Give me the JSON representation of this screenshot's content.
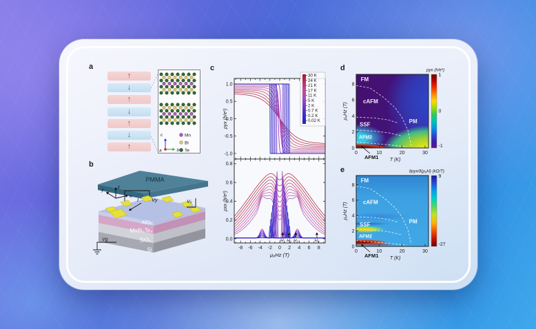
{
  "colors": {
    "background_top_left": "#837be6",
    "background_bottom_right": "#3fa8ec",
    "card_fill": "#eef1f9",
    "card_ring": "#ffffff",
    "temp_scale": [
      "#a81428",
      "#b93364",
      "#c14b9b",
      "#a648c0",
      "#7038cc",
      "#3a2cc8",
      "#2422c0"
    ],
    "colorbar_d": [
      "#6b0000",
      "#c00000",
      "#f03000",
      "#ff8a00",
      "#ffd800",
      "#a0dc00",
      "#30c860",
      "#00c4b0",
      "#0098e8",
      "#2a50d4",
      "#3a20a8",
      "#5c1292"
    ],
    "colorbar_e": [
      "#181a96",
      "#2b4ad8",
      "#00a2ec",
      "#00d2c2",
      "#58d858",
      "#c8e020",
      "#ffb400",
      "#f05800",
      "#c41400",
      "#6e0000"
    ]
  },
  "figure": {
    "panel_labels": {
      "a": "a",
      "b": "b",
      "c": "c",
      "d": "d",
      "e": "e"
    },
    "panel_a": {
      "layers": [
        "up",
        "down",
        "up",
        "down",
        "up",
        "down",
        "up"
      ],
      "layer_colors": {
        "up_bg": "#f0c9c9",
        "down_bg": "#c3ddf0",
        "up_arrow": "#c03a4e",
        "down_arrow": "#2f6fb0"
      },
      "crystal_axes": {
        "a": "a",
        "b": "b",
        "c": "c"
      },
      "atom_legend": [
        {
          "label": "Mn",
          "color": "#b35cb3",
          "stroke": "#7a3a80"
        },
        {
          "label": "Bi",
          "color": "#d9c87a",
          "stroke": "#a89440"
        },
        {
          "label": "Te",
          "color": "#2f6b36",
          "stroke": "#1c4520"
        }
      ]
    },
    "panel_b": {
      "labels": {
        "pmma": "PMMA",
        "alox": "AlOₓ",
        "mbt": "MnBi₂Te₄",
        "sio2": "SiO₂",
        "si": "Si",
        "vy": "Vy",
        "vx": "Vₓ",
        "vg": "Vg",
        "current": "I",
        "axis_x": "x",
        "axis_y": "y",
        "axis_z": "z"
      }
    },
    "panel_c": {
      "top": {
        "ylabel": "ρyx (h/e²)",
        "yticks": [
          "1.0",
          "0.5",
          "0.0",
          "-0.5",
          "-1.0"
        ]
      },
      "bottom": {
        "ylabel": "ρxx (h/e²)",
        "yticks": [
          "0.8",
          "0.6",
          "0.4",
          "0.2",
          "0.0"
        ],
        "xticks": [
          "-8",
          "-6",
          "-4",
          "-2",
          "0",
          "2",
          "4",
          "6",
          "8"
        ],
        "xlabel": "μ₀Hz (T)"
      },
      "legend_temps": [
        "30 K",
        "24 K",
        "21 K",
        "17 K",
        "11 K",
        "5 K",
        "2 K",
        "0.7 K",
        "0.2 K",
        "0.02 K"
      ]
    },
    "panel_d": {
      "title": "ρyx (h/e²)",
      "xlabel": "T (K)",
      "ylabel": "μ₀Hz (T)",
      "xticks": [
        "0",
        "10",
        "20",
        "30"
      ],
      "yticks": [
        "0",
        "2",
        "4",
        "6",
        "8"
      ],
      "colorbar_ticks": [
        "1",
        "0",
        "-1"
      ],
      "outside_label": "AFM1"
    },
    "panel_e": {
      "title": "∂ρyx/∂(μ₀H) (kΩ/T)",
      "xlabel": "T (K)",
      "ylabel": "μ₀Hz (T)",
      "xticks": [
        "0",
        "10",
        "20",
        "30"
      ],
      "yticks": [
        "0",
        "2",
        "4",
        "6",
        "8"
      ],
      "colorbar_ticks": [
        "9",
        "-27"
      ],
      "outside_label": "AFM1"
    }
  },
  "chart_data": [
    {
      "id": "panel-c-top",
      "type": "line",
      "xlabel": "μ₀Hz (T)",
      "ylabel": "ρyx (h/e²)",
      "xlim": [
        -9,
        9
      ],
      "ylim": [
        -1,
        1
      ],
      "legend_position": "top-right",
      "description": "Hall resistivity vs out-of-plane magnetic field. Smooth antisymmetric sigmoids at high temperature evolve into square hysteresis loops saturating at ±1 h/e² at millikelvin temperatures.",
      "series": [
        {
          "name": "30 K",
          "shape": "smooth",
          "saturation": 0.72
        },
        {
          "name": "24 K",
          "shape": "smooth",
          "saturation": 0.8
        },
        {
          "name": "21 K",
          "shape": "smooth",
          "saturation": 0.85
        },
        {
          "name": "17 K",
          "shape": "smooth",
          "saturation": 0.92
        },
        {
          "name": "11 K",
          "shape": "smooth",
          "saturation": 1.0
        },
        {
          "name": "5 K",
          "shape": "steep",
          "saturation": 1.0
        },
        {
          "name": "2 K",
          "shape": "hysteresis",
          "coercive_field_T": 0.6,
          "saturation": 1.0
        },
        {
          "name": "0.7 K",
          "shape": "hysteresis",
          "coercive_field_T": 1.0,
          "saturation": 1.0
        },
        {
          "name": "0.2 K",
          "shape": "hysteresis",
          "coercive_field_T": 1.5,
          "saturation": 1.0
        },
        {
          "name": "0.02 K",
          "shape": "hysteresis",
          "coercive_field_T": 2.0,
          "saturation": 1.0
        }
      ]
    },
    {
      "id": "panel-c-bottom",
      "type": "line",
      "xlabel": "μ₀Hz (T)",
      "ylabel": "ρxx (h/e²)",
      "xlim": [
        -9,
        9
      ],
      "ylim": [
        0,
        0.8
      ],
      "field_markers": [
        {
          "label": "H₁",
          "T": 0.6
        },
        {
          "label": "H₂",
          "T": 1.9
        },
        {
          "label": "H₃",
          "T": 3.3
        },
        {
          "label": "H₄",
          "T": 7.6
        }
      ],
      "series": [
        {
          "name": "30 K",
          "peak": 0.73,
          "zero_field_value": 0.62
        },
        {
          "name": "24 K",
          "peak": 0.72,
          "zero_field_value": 0.66
        },
        {
          "name": "21 K",
          "peak": 0.71,
          "zero_field_value": 0.68
        },
        {
          "name": "17 K",
          "peak": 0.68,
          "zero_field_value": 0.6
        },
        {
          "name": "11 K",
          "peak": 0.62,
          "zero_field_value": 0.45
        },
        {
          "name": "5 K",
          "peak": 0.55,
          "zero_field_value": 0.2
        },
        {
          "name": "2 K",
          "peak": 0.65,
          "zero_field_value": 0.05
        },
        {
          "name": "0.7 K",
          "peak": 0.5,
          "zero_field_value": 0.02
        },
        {
          "name": "0.2 K",
          "peak": 0.3,
          "zero_field_value": 0.01
        },
        {
          "name": "0.02 K",
          "peak": 0.15,
          "zero_field_value": 0.0
        }
      ]
    },
    {
      "id": "panel-d",
      "type": "heatmap",
      "title": "ρyx (h/e²)",
      "xlabel": "T (K)",
      "ylabel": "μ₀Hz (T)",
      "xlim": [
        0,
        30
      ],
      "ylim": [
        0,
        9
      ],
      "colorbar": {
        "min": -1,
        "max": 1,
        "ticks": [
          1,
          0,
          -1
        ]
      },
      "regions": [
        {
          "label": "FM",
          "T": 2,
          "H": 8.35
        },
        {
          "label": "cAFM",
          "T": 3,
          "H": 5.6
        },
        {
          "label": "SSF",
          "T": 1.5,
          "H": 2.7
        },
        {
          "label": "AFM2",
          "T": 1.2,
          "H": 1.15
        },
        {
          "label": "PM",
          "T": 23,
          "H": 3.1
        },
        {
          "label": "AFM1",
          "T": 4,
          "H": 0.2,
          "outside": true
        }
      ],
      "boundaries": [
        [
          [
            0,
            7.8
          ],
          [
            6,
            7.5
          ],
          [
            12,
            6.3
          ],
          [
            17,
            5.0
          ],
          [
            20,
            3.8
          ],
          [
            22.5,
            2.2
          ],
          [
            24,
            0.3
          ]
        ],
        [
          [
            0,
            3.85
          ],
          [
            8,
            3.75
          ],
          [
            14,
            3.5
          ],
          [
            18,
            3.15
          ]
        ],
        [
          [
            0,
            2.25
          ],
          [
            8,
            2.1
          ],
          [
            14,
            1.9
          ],
          [
            20,
            1.5
          ]
        ],
        [
          [
            0,
            0.75
          ],
          [
            8,
            0.55
          ],
          [
            14,
            0.4
          ],
          [
            22,
            0.15
          ]
        ]
      ]
    },
    {
      "id": "panel-e",
      "type": "heatmap",
      "title": "∂ρyx/∂(μ₀H) (kΩ/T)",
      "xlabel": "T (K)",
      "ylabel": "μ₀Hz (T)",
      "xlim": [
        0,
        30
      ],
      "ylim": [
        0,
        9
      ],
      "colorbar": {
        "min": -27,
        "max": 9,
        "ticks": [
          9,
          -27
        ]
      },
      "regions": [
        {
          "label": "FM",
          "T": 2,
          "H": 8.3
        },
        {
          "label": "cAFM",
          "T": 3,
          "H": 5.5
        },
        {
          "label": "SSF",
          "T": 1.5,
          "H": 2.6
        },
        {
          "label": "AFM2",
          "T": 1.2,
          "H": 1.1
        },
        {
          "label": "PM",
          "T": 23,
          "H": 3.0
        },
        {
          "label": "AFM1",
          "T": 4,
          "H": 0.2,
          "outside": true
        }
      ],
      "boundaries": [
        [
          [
            0,
            7.8
          ],
          [
            6,
            7.5
          ],
          [
            12,
            6.3
          ],
          [
            17,
            5.0
          ],
          [
            20,
            3.8
          ],
          [
            22.5,
            2.2
          ],
          [
            24,
            0.3
          ]
        ],
        [
          [
            0,
            3.85
          ],
          [
            8,
            3.75
          ],
          [
            14,
            3.5
          ],
          [
            18,
            3.15
          ]
        ],
        [
          [
            0,
            2.25
          ],
          [
            8,
            2.1
          ],
          [
            14,
            1.9
          ],
          [
            20,
            1.5
          ]
        ],
        [
          [
            0,
            0.75
          ],
          [
            8,
            0.55
          ],
          [
            14,
            0.4
          ],
          [
            22,
            0.15
          ]
        ]
      ]
    }
  ]
}
